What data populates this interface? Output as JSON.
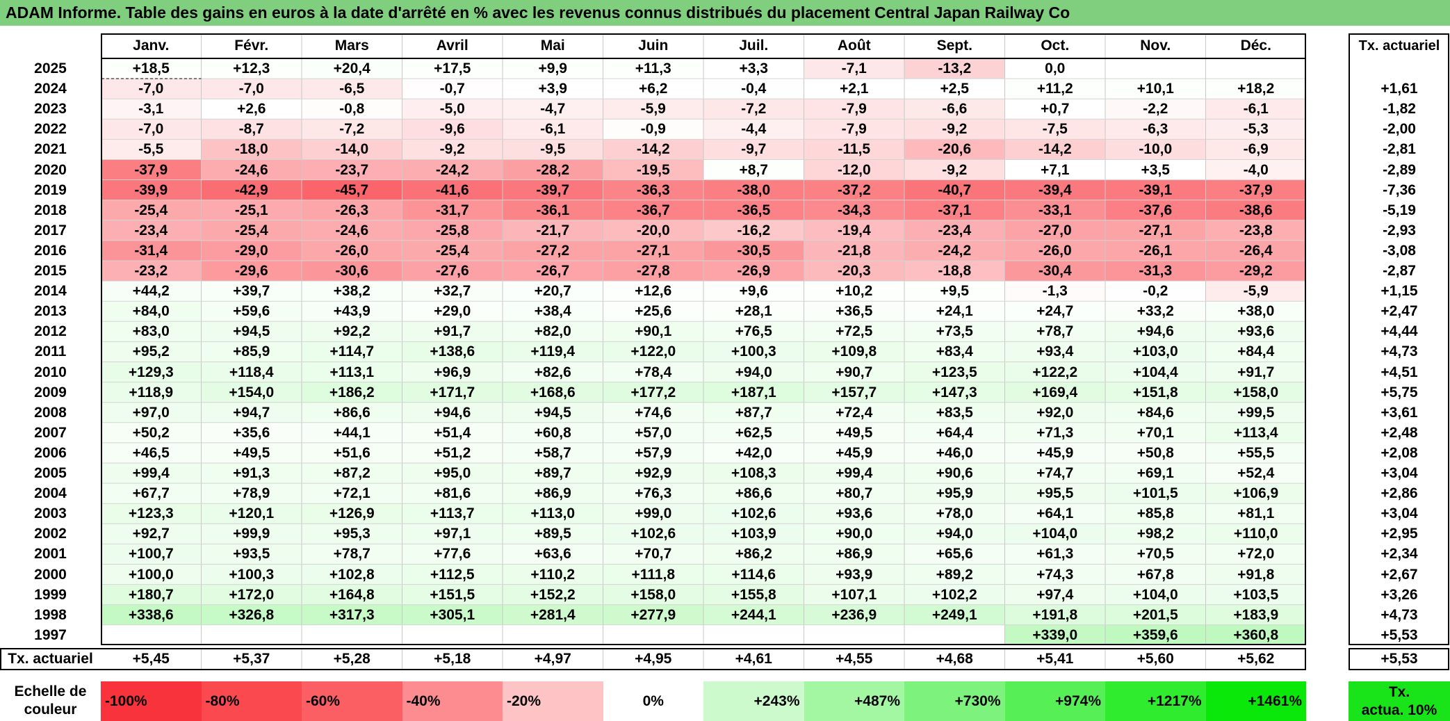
{
  "title": "ADAM Informe. Table des gains en euros à la date d'arrêté en % avec les revenus connus distribués du placement Central Japan Railway Co",
  "months": [
    "Janv.",
    "Févr.",
    "Mars",
    "Avril",
    "Mai",
    "Juin",
    "Juil.",
    "Août",
    "Sept.",
    "Oct.",
    "Nov.",
    "Déc."
  ],
  "rate_header": "Tx. actuariel",
  "rows": [
    {
      "year": "2025",
      "values": [
        "+18,5",
        "+12,3",
        "+20,4",
        "+17,5",
        "+9,9",
        "+11,3",
        "+3,3",
        "-7,1",
        "-13,2",
        "0,0",
        "",
        ""
      ],
      "rate": ""
    },
    {
      "year": "2024",
      "values": [
        "-7,0",
        "-7,0",
        "-6,5",
        "-0,7",
        "+3,9",
        "+6,2",
        "-0,4",
        "+2,1",
        "+2,5",
        "+11,2",
        "+10,1",
        "+18,2"
      ],
      "rate": "+1,61"
    },
    {
      "year": "2023",
      "values": [
        "-3,1",
        "+2,6",
        "-0,8",
        "-5,0",
        "-4,7",
        "-5,9",
        "-7,2",
        "-7,9",
        "-6,6",
        "+0,7",
        "-2,2",
        "-6,1"
      ],
      "rate": "-1,82"
    },
    {
      "year": "2022",
      "values": [
        "-7,0",
        "-8,7",
        "-7,2",
        "-9,6",
        "-6,1",
        "-0,9",
        "-4,4",
        "-7,9",
        "-9,2",
        "-7,5",
        "-6,3",
        "-5,3"
      ],
      "rate": "-2,00"
    },
    {
      "year": "2021",
      "values": [
        "-5,5",
        "-18,0",
        "-14,0",
        "-9,2",
        "-9,5",
        "-14,2",
        "-9,7",
        "-11,5",
        "-20,6",
        "-14,2",
        "-10,0",
        "-6,9"
      ],
      "rate": "-2,81"
    },
    {
      "year": "2020",
      "values": [
        "-37,9",
        "-24,6",
        "-23,7",
        "-24,2",
        "-28,2",
        "-19,5",
        "+8,7",
        "-12,0",
        "-9,2",
        "+7,1",
        "+3,5",
        "-4,0"
      ],
      "rate": "-2,89"
    },
    {
      "year": "2019",
      "values": [
        "-39,9",
        "-42,9",
        "-45,7",
        "-41,6",
        "-39,7",
        "-36,3",
        "-38,0",
        "-37,2",
        "-40,7",
        "-39,4",
        "-39,1",
        "-37,9"
      ],
      "rate": "-7,36"
    },
    {
      "year": "2018",
      "values": [
        "-25,4",
        "-25,1",
        "-26,3",
        "-31,7",
        "-36,1",
        "-36,7",
        "-36,5",
        "-34,3",
        "-37,1",
        "-33,1",
        "-37,6",
        "-38,6"
      ],
      "rate": "-5,19"
    },
    {
      "year": "2017",
      "values": [
        "-23,4",
        "-25,4",
        "-24,6",
        "-25,8",
        "-21,7",
        "-20,0",
        "-16,2",
        "-19,4",
        "-23,4",
        "-27,0",
        "-27,1",
        "-23,8"
      ],
      "rate": "-2,93"
    },
    {
      "year": "2016",
      "values": [
        "-31,4",
        "-29,0",
        "-26,0",
        "-25,4",
        "-27,2",
        "-27,1",
        "-30,5",
        "-21,8",
        "-24,2",
        "-26,0",
        "-26,1",
        "-26,4"
      ],
      "rate": "-3,08"
    },
    {
      "year": "2015",
      "values": [
        "-23,2",
        "-29,6",
        "-30,6",
        "-27,6",
        "-26,7",
        "-27,8",
        "-26,9",
        "-20,3",
        "-18,8",
        "-30,4",
        "-31,3",
        "-29,2"
      ],
      "rate": "-2,87"
    },
    {
      "year": "2014",
      "values": [
        "+44,2",
        "+39,7",
        "+38,2",
        "+32,7",
        "+20,7",
        "+12,6",
        "+9,6",
        "+10,2",
        "+9,5",
        "-1,3",
        "-0,2",
        "-5,9"
      ],
      "rate": "+1,15"
    },
    {
      "year": "2013",
      "values": [
        "+84,0",
        "+59,6",
        "+43,9",
        "+29,0",
        "+38,4",
        "+25,6",
        "+28,1",
        "+36,5",
        "+24,1",
        "+24,7",
        "+33,2",
        "+38,0"
      ],
      "rate": "+2,47"
    },
    {
      "year": "2012",
      "values": [
        "+83,0",
        "+94,5",
        "+92,2",
        "+91,7",
        "+82,0",
        "+90,1",
        "+76,5",
        "+72,5",
        "+73,5",
        "+78,7",
        "+94,6",
        "+93,6"
      ],
      "rate": "+4,44"
    },
    {
      "year": "2011",
      "values": [
        "+95,2",
        "+85,9",
        "+114,7",
        "+138,6",
        "+119,4",
        "+122,0",
        "+100,3",
        "+109,8",
        "+83,4",
        "+93,4",
        "+103,0",
        "+84,4"
      ],
      "rate": "+4,73"
    },
    {
      "year": "2010",
      "values": [
        "+129,3",
        "+118,4",
        "+113,1",
        "+96,9",
        "+82,6",
        "+78,4",
        "+94,0",
        "+90,7",
        "+123,5",
        "+122,2",
        "+104,4",
        "+91,7"
      ],
      "rate": "+4,51"
    },
    {
      "year": "2009",
      "values": [
        "+118,9",
        "+154,0",
        "+186,2",
        "+171,7",
        "+168,6",
        "+177,2",
        "+187,1",
        "+157,7",
        "+147,3",
        "+169,4",
        "+151,8",
        "+158,0"
      ],
      "rate": "+5,75"
    },
    {
      "year": "2008",
      "values": [
        "+97,0",
        "+94,7",
        "+86,6",
        "+94,6",
        "+94,5",
        "+74,6",
        "+87,7",
        "+72,4",
        "+83,5",
        "+92,0",
        "+84,6",
        "+99,5"
      ],
      "rate": "+3,61"
    },
    {
      "year": "2007",
      "values": [
        "+50,2",
        "+35,6",
        "+44,1",
        "+51,4",
        "+60,8",
        "+57,0",
        "+62,5",
        "+49,5",
        "+64,4",
        "+71,3",
        "+70,1",
        "+113,4"
      ],
      "rate": "+2,48"
    },
    {
      "year": "2006",
      "values": [
        "+46,5",
        "+49,5",
        "+51,6",
        "+51,2",
        "+58,7",
        "+57,9",
        "+42,0",
        "+45,9",
        "+46,0",
        "+45,9",
        "+50,8",
        "+55,5"
      ],
      "rate": "+2,08"
    },
    {
      "year": "2005",
      "values": [
        "+99,4",
        "+91,3",
        "+87,2",
        "+95,0",
        "+89,7",
        "+92,9",
        "+108,3",
        "+99,4",
        "+90,6",
        "+74,7",
        "+69,1",
        "+52,4"
      ],
      "rate": "+3,04"
    },
    {
      "year": "2004",
      "values": [
        "+67,7",
        "+78,9",
        "+72,1",
        "+81,6",
        "+86,9",
        "+76,3",
        "+86,6",
        "+80,7",
        "+95,9",
        "+95,5",
        "+101,5",
        "+106,9"
      ],
      "rate": "+2,86"
    },
    {
      "year": "2003",
      "values": [
        "+123,3",
        "+120,1",
        "+126,9",
        "+113,7",
        "+113,0",
        "+99,0",
        "+102,6",
        "+93,6",
        "+78,0",
        "+64,1",
        "+85,8",
        "+81,1"
      ],
      "rate": "+3,04"
    },
    {
      "year": "2002",
      "values": [
        "+92,7",
        "+99,9",
        "+95,3",
        "+97,1",
        "+89,5",
        "+102,6",
        "+103,9",
        "+90,0",
        "+94,0",
        "+104,0",
        "+98,2",
        "+110,0"
      ],
      "rate": "+2,95"
    },
    {
      "year": "2001",
      "values": [
        "+100,7",
        "+93,5",
        "+78,7",
        "+77,6",
        "+63,6",
        "+70,7",
        "+86,2",
        "+86,9",
        "+65,6",
        "+61,3",
        "+70,5",
        "+72,0"
      ],
      "rate": "+2,34"
    },
    {
      "year": "2000",
      "values": [
        "+100,0",
        "+100,3",
        "+102,8",
        "+112,5",
        "+110,2",
        "+111,8",
        "+114,6",
        "+93,9",
        "+89,2",
        "+74,3",
        "+67,8",
        "+91,8"
      ],
      "rate": "+2,67"
    },
    {
      "year": "1999",
      "values": [
        "+180,7",
        "+172,0",
        "+164,8",
        "+151,5",
        "+152,2",
        "+158,0",
        "+155,8",
        "+107,1",
        "+102,2",
        "+97,4",
        "+104,0",
        "+103,5"
      ],
      "rate": "+3,26"
    },
    {
      "year": "1998",
      "values": [
        "+338,6",
        "+326,8",
        "+317,3",
        "+305,1",
        "+281,4",
        "+277,9",
        "+244,1",
        "+236,9",
        "+249,1",
        "+191,8",
        "+201,5",
        "+183,9"
      ],
      "rate": "+4,73"
    },
    {
      "year": "1997",
      "values": [
        "",
        "",
        "",
        "",
        "",
        "",
        "",
        "",
        "",
        "+339,0",
        "+359,6",
        "+360,8"
      ],
      "rate": "+5,53"
    }
  ],
  "totals": {
    "label": "Tx. actuariel",
    "values": [
      "+5,45",
      "+5,37",
      "+5,28",
      "+5,18",
      "+4,97",
      "+4,95",
      "+4,61",
      "+4,55",
      "+4,68",
      "+5,41",
      "+5,60",
      "+5,62"
    ],
    "rate": "+5,53"
  },
  "legend": {
    "label_line1": "Echelle de",
    "label_line2": "couleur",
    "items": [
      {
        "label": "-100%",
        "color": "#f8333b"
      },
      {
        "label": "-80%",
        "color": "#fa4a50"
      },
      {
        "label": "-60%",
        "color": "#fb5f64"
      },
      {
        "label": "-40%",
        "color": "#fc8c8f"
      },
      {
        "label": "-20%",
        "color": "#fec3c5"
      },
      {
        "label": "0%",
        "color": "#ffffff"
      },
      {
        "label": "+243%",
        "color": "#cdfacd"
      },
      {
        "label": "+487%",
        "color": "#a3f7a3"
      },
      {
        "label": "+730%",
        "color": "#7df37d"
      },
      {
        "label": "+974%",
        "color": "#56ef56"
      },
      {
        "label": "+1217%",
        "color": "#2fec2f"
      },
      {
        "label": "+1461%",
        "color": "#0ae80a"
      }
    ],
    "rate_line1": "Tx.",
    "rate_line2": "actua. 10%",
    "rate_color": "#19e319"
  },
  "colors": {
    "title_bg": "#7fcf7f",
    "negative": "#f8333b",
    "positive": "#0ae80a"
  }
}
